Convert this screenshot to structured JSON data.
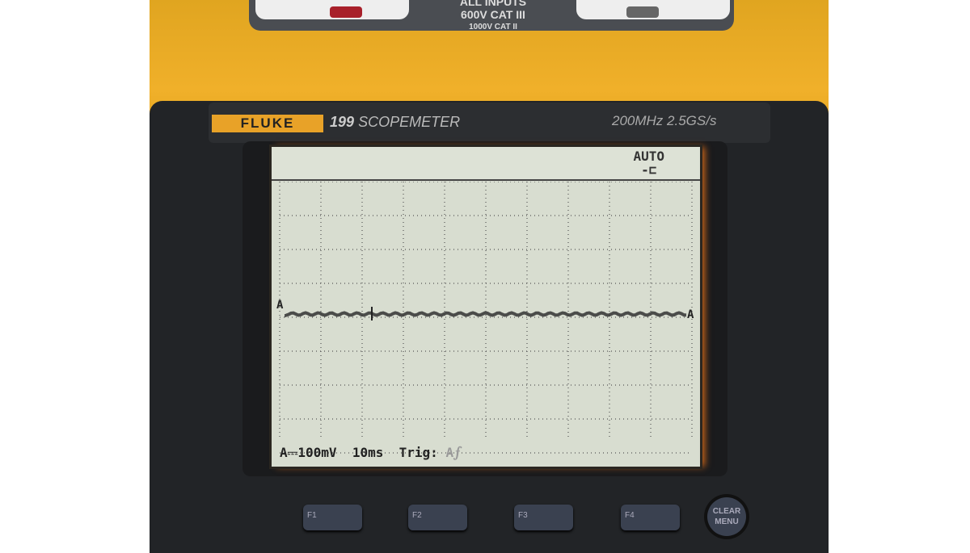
{
  "device": {
    "brand": "FLUKE",
    "model": "199",
    "model_name": "SCOPEMETER",
    "spec": "200MHz  2.5GS/s",
    "input_rating": {
      "line1": "ALL INPUTS",
      "line2": "600V CAT III",
      "line3": "1000V CAT II"
    }
  },
  "screen": {
    "mode": "AUTO",
    "mode_icon": "plug-icon",
    "channel_marker": "A",
    "status": {
      "range": "A⎓100mV",
      "timebase": "10ms",
      "trig_label": "Trig:",
      "trig_value": "A⨍"
    }
  },
  "buttons": {
    "f1": "F1",
    "f2": "F2",
    "f3": "F3",
    "f4": "F4",
    "clear_line1": "CLEAR",
    "clear_line2": "MENU"
  },
  "colors": {
    "body_yellow": "#f0b02a",
    "lcd_background": "#d8ddd0",
    "case": "#222427"
  }
}
